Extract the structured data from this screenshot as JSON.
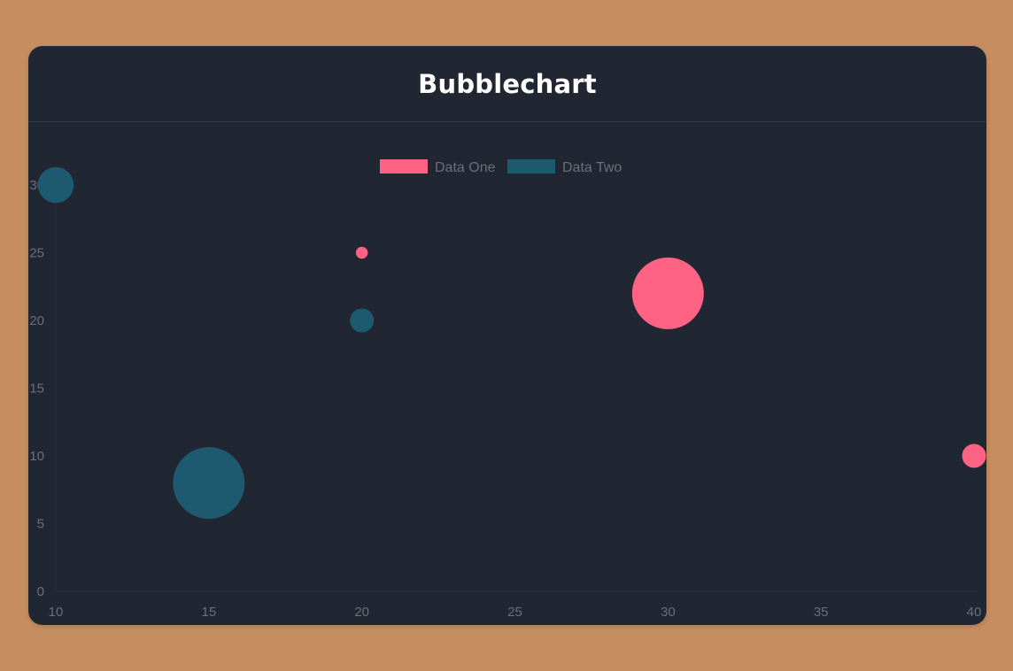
{
  "card": {
    "title": "Bubblechart"
  },
  "colors": {
    "background": "#c68e60",
    "card": "#212633",
    "series_one": "#ff6384",
    "series_two": "#1d5a70",
    "axis_text": "#6b6f78"
  },
  "chart_data": {
    "type": "bubble",
    "title": "Bubblechart",
    "xlim": [
      10,
      40
    ],
    "ylim": [
      0,
      30
    ],
    "x_ticks": [
      10,
      15,
      20,
      25,
      30,
      35,
      40
    ],
    "y_ticks": [
      0,
      5,
      10,
      15,
      20,
      25,
      30
    ],
    "grid": false,
    "legend_position": "top-center",
    "series": [
      {
        "name": "Data One",
        "color": "#ff6384",
        "points": [
          {
            "x": 20,
            "y": 25,
            "r": 5
          },
          {
            "x": 30,
            "y": 22,
            "r": 30
          },
          {
            "x": 40,
            "y": 10,
            "r": 10
          }
        ]
      },
      {
        "name": "Data Two",
        "color": "#1d5a70",
        "points": [
          {
            "x": 10,
            "y": 30,
            "r": 15
          },
          {
            "x": 20,
            "y": 20,
            "r": 10
          },
          {
            "x": 15,
            "y": 8,
            "r": 30
          }
        ]
      }
    ]
  }
}
